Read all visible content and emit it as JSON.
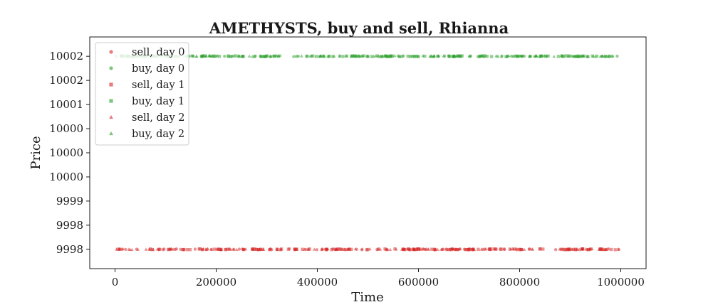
{
  "chart_data": {
    "type": "scatter",
    "title": "AMETHYSTS, buy and sell, Rhianna",
    "xlabel": "Time",
    "ylabel": "Price",
    "xlim": [
      -50000,
      1050000
    ],
    "ylim": [
      9997.6,
      10002.4
    ],
    "x_ticks": [
      {
        "value": 0,
        "label": "0"
      },
      {
        "value": 200000,
        "label": "200000"
      },
      {
        "value": 400000,
        "label": "400000"
      },
      {
        "value": 600000,
        "label": "600000"
      },
      {
        "value": 800000,
        "label": "800000"
      },
      {
        "value": 1000000,
        "label": "1000000"
      }
    ],
    "y_ticks": [
      {
        "value": 9998.0,
        "label": "9998"
      },
      {
        "value": 9998.5,
        "label": "9998"
      },
      {
        "value": 9999.0,
        "label": "9999"
      },
      {
        "value": 9999.5,
        "label": "10000"
      },
      {
        "value": 10000.0,
        "label": "10000"
      },
      {
        "value": 10000.5,
        "label": "10000"
      },
      {
        "value": 10001.0,
        "label": "10001"
      },
      {
        "value": 10001.5,
        "label": "10002"
      },
      {
        "value": 10002.0,
        "label": "10002"
      }
    ],
    "grid": false,
    "legend_position": "upper-left",
    "series": [
      {
        "name": "sell, day 0",
        "marker": "circle",
        "color": "#d62728",
        "y": 9998,
        "x_ranges": [
          [
            0,
            1000000
          ]
        ]
      },
      {
        "name": "buy, day 0",
        "marker": "circle",
        "color": "#2ca02c",
        "y": 10002,
        "x_ranges": [
          [
            0,
            1000000
          ]
        ]
      },
      {
        "name": "sell, day 1",
        "marker": "square",
        "color": "#d62728",
        "y": 9998,
        "x_ranges": [
          [
            0,
            1000000
          ]
        ]
      },
      {
        "name": "buy, day 1",
        "marker": "square",
        "color": "#2ca02c",
        "y": 10002,
        "x_ranges": [
          [
            0,
            1000000
          ]
        ]
      },
      {
        "name": "sell, day 2",
        "marker": "triangle",
        "color": "#d62728",
        "y": 9998,
        "x_ranges": [
          [
            0,
            1000000
          ]
        ]
      },
      {
        "name": "buy, day 2",
        "marker": "triangle",
        "color": "#2ca02c",
        "y": 10002,
        "x_ranges": [
          [
            0,
            1000000
          ]
        ]
      }
    ]
  }
}
